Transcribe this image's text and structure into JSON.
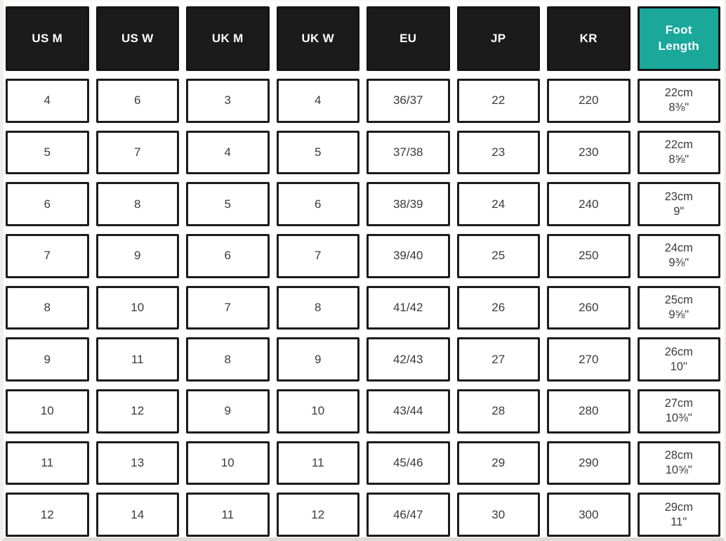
{
  "chart_data": {
    "type": "table",
    "columns": [
      {
        "label": "US M"
      },
      {
        "label": "US W"
      },
      {
        "label": "UK M"
      },
      {
        "label": "UK W"
      },
      {
        "label": "EU"
      },
      {
        "label": "JP"
      },
      {
        "label": "KR"
      },
      {
        "label": "Foot\nLength",
        "accent": true
      }
    ],
    "rows": [
      {
        "cells": [
          "4",
          "6",
          "3",
          "4",
          "36/37",
          "22",
          "220"
        ],
        "foot": "22cm\n8⅜\""
      },
      {
        "cells": [
          "5",
          "7",
          "4",
          "5",
          "37/38",
          "23",
          "230"
        ],
        "foot": "22cm\n8⅝\""
      },
      {
        "cells": [
          "6",
          "8",
          "5",
          "6",
          "38/39",
          "24",
          "240"
        ],
        "foot": "23cm\n9\""
      },
      {
        "cells": [
          "7",
          "9",
          "6",
          "7",
          "39/40",
          "25",
          "250"
        ],
        "foot": "24cm\n9⅜\""
      },
      {
        "cells": [
          "8",
          "10",
          "7",
          "8",
          "41/42",
          "26",
          "260"
        ],
        "foot": "25cm\n9⅝\""
      },
      {
        "cells": [
          "9",
          "11",
          "8",
          "9",
          "42/43",
          "27",
          "270"
        ],
        "foot": "26cm\n10\""
      },
      {
        "cells": [
          "10",
          "12",
          "9",
          "10",
          "43/44",
          "28",
          "280"
        ],
        "foot": "27cm\n10⅜\""
      },
      {
        "cells": [
          "11",
          "13",
          "10",
          "11",
          "45/46",
          "29",
          "290"
        ],
        "foot": "28cm\n10⅝\""
      },
      {
        "cells": [
          "12",
          "14",
          "11",
          "12",
          "46/47",
          "30",
          "300"
        ],
        "foot": "29cm\n11\""
      }
    ]
  },
  "colors": {
    "header_bg": "#1b1b1b",
    "accent_teal": "#1aa89b",
    "cell_border": "#1c1c1c",
    "cell_text": "#3b3b3b",
    "header_text": "#ffffff"
  }
}
